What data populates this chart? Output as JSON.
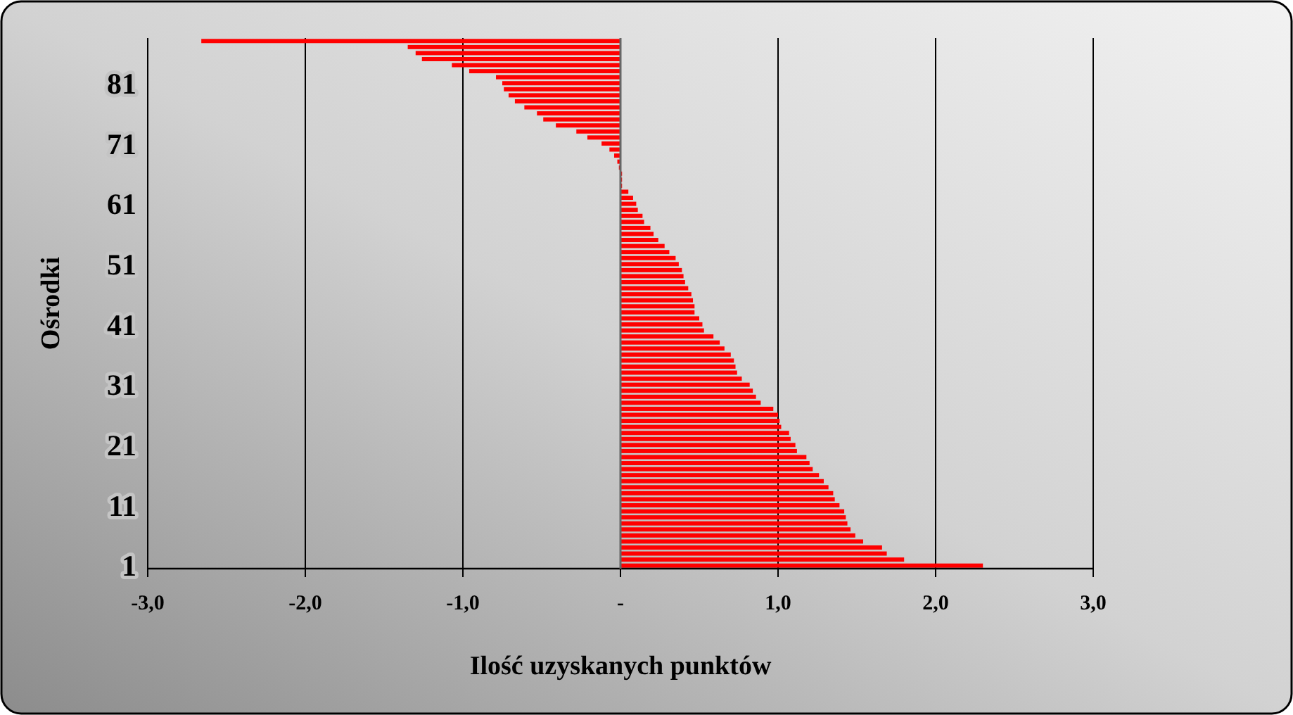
{
  "chart_data": {
    "type": "bar",
    "orientation": "horizontal",
    "xlabel": "Ilość uzyskanych punktów",
    "ylabel": "Ośrodki",
    "categories": [
      null,
      null,
      null,
      null,
      null,
      null,
      null,
      "81",
      null,
      null,
      null,
      null,
      null,
      null,
      null,
      null,
      null,
      "71",
      null,
      null,
      null,
      null,
      null,
      null,
      null,
      null,
      null,
      "61",
      null,
      null,
      null,
      null,
      null,
      null,
      null,
      null,
      null,
      "51",
      null,
      null,
      null,
      null,
      null,
      null,
      null,
      null,
      null,
      "41",
      null,
      null,
      null,
      null,
      null,
      null,
      null,
      null,
      null,
      "31",
      null,
      null,
      null,
      null,
      null,
      null,
      null,
      null,
      null,
      "21",
      null,
      null,
      null,
      null,
      null,
      null,
      null,
      null,
      null,
      "11",
      null,
      null,
      null,
      null,
      null,
      null,
      null,
      null,
      null,
      "1"
    ],
    "values": [
      -2.66,
      -1.35,
      -1.3,
      -1.26,
      -1.07,
      -0.96,
      -0.79,
      -0.75,
      -0.74,
      -0.71,
      -0.67,
      -0.61,
      -0.53,
      -0.49,
      -0.41,
      -0.28,
      -0.21,
      -0.12,
      -0.07,
      -0.04,
      -0.02,
      -0.01,
      0.01,
      0.01,
      0.01,
      0.05,
      0.08,
      0.1,
      0.11,
      0.14,
      0.15,
      0.19,
      0.21,
      0.24,
      0.28,
      0.31,
      0.35,
      0.37,
      0.39,
      0.4,
      0.41,
      0.43,
      0.45,
      0.46,
      0.47,
      0.47,
      0.5,
      0.52,
      0.53,
      0.59,
      0.63,
      0.66,
      0.7,
      0.72,
      0.73,
      0.74,
      0.77,
      0.82,
      0.84,
      0.86,
      0.89,
      0.97,
      1.0,
      1.01,
      1.02,
      1.07,
      1.08,
      1.11,
      1.12,
      1.18,
      1.2,
      1.22,
      1.26,
      1.29,
      1.32,
      1.35,
      1.36,
      1.39,
      1.42,
      1.43,
      1.44,
      1.46,
      1.49,
      1.54,
      1.66,
      1.69,
      1.8,
      2.3
    ],
    "color": "#ff0000",
    "xlim": [
      -3,
      3
    ],
    "xticks": [
      {
        "value": -3,
        "label": "-3,0"
      },
      {
        "value": -2,
        "label": "-2,0"
      },
      {
        "value": -1,
        "label": "-1,0"
      },
      {
        "value": 0,
        "label": "-"
      },
      {
        "value": 1,
        "label": "1,0"
      },
      {
        "value": 2,
        "label": "2,0"
      },
      {
        "value": 3,
        "label": "3,0"
      }
    ],
    "grid": "x"
  }
}
